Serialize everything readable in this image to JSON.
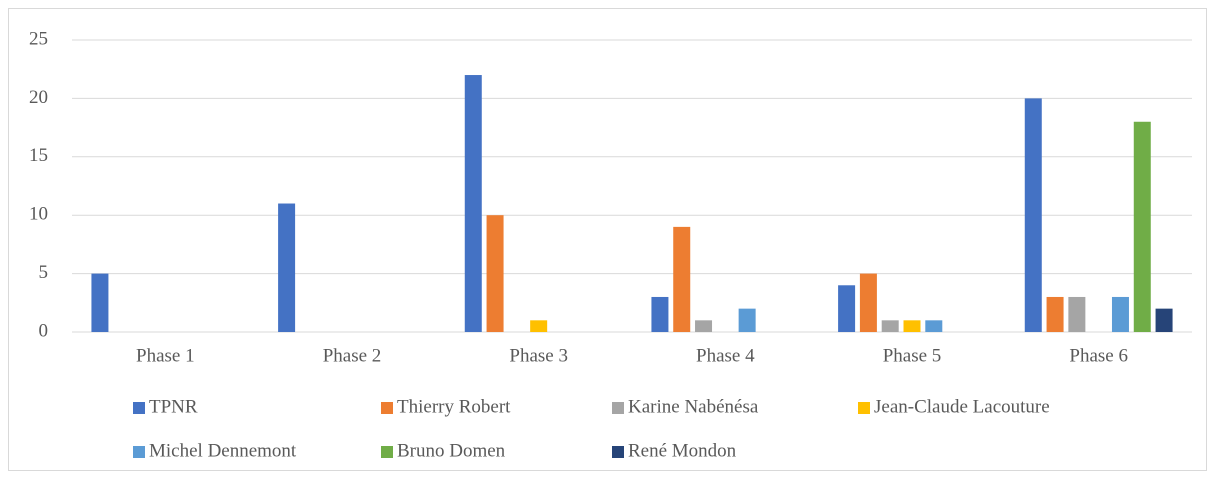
{
  "chart_data": {
    "type": "bar",
    "categories": [
      "Phase 1",
      "Phase 2",
      "Phase 3",
      "Phase 4",
      "Phase 5",
      "Phase 6"
    ],
    "series": [
      {
        "name": "TPNR",
        "color": "#4472c4",
        "values": [
          5,
          11,
          22,
          3,
          4,
          20
        ]
      },
      {
        "name": "Thierry Robert",
        "color": "#ed7d31",
        "values": [
          0,
          0,
          10,
          9,
          5,
          3
        ]
      },
      {
        "name": "Karine Nabénésa",
        "color": "#a5a5a5",
        "values": [
          0,
          0,
          0,
          1,
          1,
          3
        ]
      },
      {
        "name": "Jean-Claude Lacouture",
        "color": "#ffc000",
        "values": [
          0,
          0,
          1,
          0,
          1,
          0
        ]
      },
      {
        "name": "Michel Dennemont",
        "color": "#5b9bd5",
        "values": [
          0,
          0,
          0,
          2,
          1,
          3
        ]
      },
      {
        "name": "Bruno Domen",
        "color": "#70ad47",
        "values": [
          0,
          0,
          0,
          0,
          0,
          18
        ]
      },
      {
        "name": "René Mondon",
        "color": "#264478",
        "values": [
          0,
          0,
          0,
          0,
          0,
          2
        ]
      }
    ],
    "ylim": [
      0,
      25
    ],
    "yticks": [
      0,
      5,
      10,
      15,
      20,
      25
    ],
    "grid": true,
    "legend": "bottom"
  }
}
